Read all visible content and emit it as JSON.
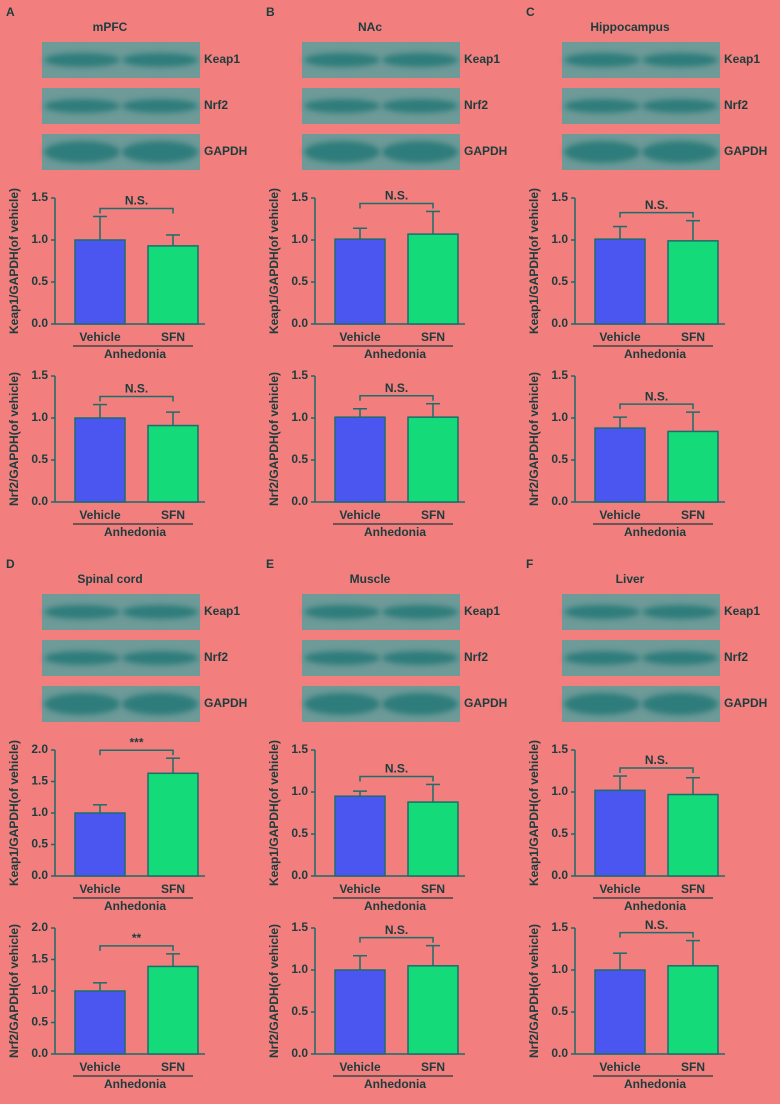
{
  "panels": [
    {
      "letter": "A",
      "title": "mPFC",
      "blot_labels": [
        "Keap1",
        "Nrf2",
        "GAPDH"
      ]
    },
    {
      "letter": "B",
      "title": "NAc",
      "blot_labels": [
        "Keap1",
        "Nrf2",
        "GAPDH"
      ]
    },
    {
      "letter": "C",
      "title": "Hippocampus",
      "blot_labels": [
        "Keap1",
        "Nrf2",
        "GAPDH"
      ]
    },
    {
      "letter": "D",
      "title": "Spinal cord",
      "blot_labels": [
        "Keap1",
        "Nrf2",
        "GAPDH"
      ]
    },
    {
      "letter": "E",
      "title": "Muscle",
      "blot_labels": [
        "Keap1",
        "Nrf2",
        "GAPDH"
      ]
    },
    {
      "letter": "F",
      "title": "Liver",
      "blot_labels": [
        "Keap1",
        "Nrf2",
        "GAPDH"
      ]
    }
  ],
  "chart_data": [
    {
      "type": "bar",
      "ylabel": "Keap1/GAPDH(of vehicle)",
      "categories": [
        "Vehicle",
        "SFN"
      ],
      "group_label": "Anhedonia",
      "values": [
        1.0,
        0.93
      ],
      "errors": [
        0.28,
        0.13
      ],
      "colors": [
        "#4b55f0",
        "#14da7a"
      ],
      "annotation": "N.S.",
      "ylim": [
        0,
        1.5
      ],
      "yticks": [
        {
          "value": 0,
          "label": "0.0"
        },
        0.5,
        {
          "value": 1,
          "label": "1.0"
        },
        1.5
      ]
    },
    {
      "type": "bar",
      "ylabel": "Nrf2/GAPDH(of vehicle)",
      "categories": [
        "Vehicle",
        "SFN"
      ],
      "group_label": "Anhedonia",
      "values": [
        1.0,
        0.91
      ],
      "errors": [
        0.16,
        0.16
      ],
      "colors": [
        "#4b55f0",
        "#14da7a"
      ],
      "annotation": "N.S.",
      "ylim": [
        0,
        1.5
      ],
      "yticks": [
        {
          "value": 0,
          "label": "0.0"
        },
        0.5,
        {
          "value": 1,
          "label": "1.0"
        },
        1.5
      ]
    },
    {
      "type": "bar",
      "ylabel": "Keap1/GAPDH(of vehicle)",
      "categories": [
        "Vehicle",
        "SFN"
      ],
      "group_label": "Anhedonia",
      "values": [
        1.01,
        1.07
      ],
      "errors": [
        0.13,
        0.27
      ],
      "colors": [
        "#4b55f0",
        "#14da7a"
      ],
      "annotation": "N.S.",
      "ylim": [
        0,
        1.5
      ],
      "yticks": [
        {
          "value": 0,
          "label": "0.0"
        },
        0.5,
        {
          "value": 1,
          "label": "1.0"
        },
        1.5
      ]
    },
    {
      "type": "bar",
      "ylabel": "Nrf2/GAPDH(of vehicle)",
      "categories": [
        "Vehicle",
        "SFN"
      ],
      "group_label": "Anhedonia",
      "values": [
        1.01,
        1.01
      ],
      "errors": [
        0.1,
        0.16
      ],
      "colors": [
        "#4b55f0",
        "#14da7a"
      ],
      "annotation": "N.S.",
      "ylim": [
        0,
        1.5
      ],
      "yticks": [
        {
          "value": 0,
          "label": "0.0"
        },
        0.5,
        {
          "value": 1,
          "label": "1.0"
        },
        1.5
      ]
    },
    {
      "type": "bar",
      "ylabel": "Keap1/GAPDH(of vehicle)",
      "categories": [
        "Vehicle",
        "SFN"
      ],
      "group_label": "Anhedonia",
      "values": [
        1.01,
        0.99
      ],
      "errors": [
        0.15,
        0.24
      ],
      "colors": [
        "#4b55f0",
        "#14da7a"
      ],
      "annotation": "N.S.",
      "ylim": [
        0,
        1.5
      ],
      "yticks": [
        {
          "value": 0,
          "label": "0.0"
        },
        0.5,
        {
          "value": 1,
          "label": "1.0"
        },
        1.5
      ]
    },
    {
      "type": "bar",
      "ylabel": "Nrf2/GAPDH(of vehicle)",
      "categories": [
        "Vehicle",
        "SFN"
      ],
      "group_label": "Anhedonia",
      "values": [
        0.88,
        0.84
      ],
      "errors": [
        0.13,
        0.23
      ],
      "colors": [
        "#4b55f0",
        "#14da7a"
      ],
      "annotation": "N.S.",
      "ylim": [
        0,
        1.5
      ],
      "yticks": [
        {
          "value": 0,
          "label": "0.0"
        },
        0.5,
        {
          "value": 1,
          "label": "1.0"
        },
        1.5
      ]
    },
    {
      "type": "bar",
      "ylabel": "Keap1/GAPDH(of vehicle)",
      "categories": [
        "Vehicle",
        "SFN"
      ],
      "group_label": "Anhedonia",
      "values": [
        1.0,
        1.63
      ],
      "errors": [
        0.13,
        0.24
      ],
      "colors": [
        "#4b55f0",
        "#14da7a"
      ],
      "annotation": "***",
      "ylim": [
        0,
        2
      ],
      "yticks": [
        {
          "value": 0,
          "label": "0.0"
        },
        0.5,
        {
          "value": 1,
          "label": "1.0"
        },
        1.5,
        {
          "value": 2,
          "label": "2.0"
        }
      ]
    },
    {
      "type": "bar",
      "ylabel": "Nrf2/GAPDH(of vehicle)",
      "categories": [
        "Vehicle",
        "SFN"
      ],
      "group_label": "Anhedonia",
      "values": [
        1.0,
        1.39
      ],
      "errors": [
        0.13,
        0.2
      ],
      "colors": [
        "#4b55f0",
        "#14da7a"
      ],
      "annotation": "**",
      "ylim": [
        0,
        2
      ],
      "yticks": [
        {
          "value": 0,
          "label": "0.0"
        },
        0.5,
        {
          "value": 1,
          "label": "1.0"
        },
        1.5,
        {
          "value": 2,
          "label": "2.0"
        }
      ]
    },
    {
      "type": "bar",
      "ylabel": "Keap1/GAPDH(of vehicle)",
      "categories": [
        "Vehicle",
        "SFN"
      ],
      "group_label": "Anhedonia",
      "values": [
        0.95,
        0.88
      ],
      "errors": [
        0.06,
        0.21
      ],
      "colors": [
        "#4b55f0",
        "#14da7a"
      ],
      "annotation": "N.S.",
      "ylim": [
        0,
        1.5
      ],
      "yticks": [
        {
          "value": 0,
          "label": "0.0"
        },
        0.5,
        {
          "value": 1,
          "label": "1.0"
        },
        1.5
      ]
    },
    {
      "type": "bar",
      "ylabel": "Nrf2/GAPDH(of vehicle)",
      "categories": [
        "Vehicle",
        "SFN"
      ],
      "group_label": "Anhedonia",
      "values": [
        1.0,
        1.05
      ],
      "errors": [
        0.17,
        0.24
      ],
      "colors": [
        "#4b55f0",
        "#14da7a"
      ],
      "annotation": "N.S.",
      "ylim": [
        0,
        1.5
      ],
      "yticks": [
        {
          "value": 0,
          "label": "0.0"
        },
        0.5,
        {
          "value": 1,
          "label": "1.0"
        },
        1.5
      ]
    },
    {
      "type": "bar",
      "ylabel": "Keap1/GAPDH(of vehicle)",
      "categories": [
        "Vehicle",
        "SFN"
      ],
      "group_label": "Anhedonia",
      "values": [
        1.02,
        0.97
      ],
      "errors": [
        0.17,
        0.2
      ],
      "colors": [
        "#4b55f0",
        "#14da7a"
      ],
      "annotation": "N.S.",
      "ylim": [
        0,
        1.5
      ],
      "yticks": [
        {
          "value": 0,
          "label": "0.0"
        },
        0.5,
        {
          "value": 1,
          "label": "1.0"
        },
        1.5
      ]
    },
    {
      "type": "bar",
      "ylabel": "Nrf2/GAPDH(of vehicle)",
      "categories": [
        "Vehicle",
        "SFN"
      ],
      "group_label": "Anhedonia",
      "values": [
        1.0,
        1.05
      ],
      "errors": [
        0.2,
        0.3
      ],
      "colors": [
        "#4b55f0",
        "#14da7a"
      ],
      "annotation": "N.S.",
      "ylim": [
        0,
        1.5
      ],
      "yticks": [
        {
          "value": 0,
          "label": "0.0"
        },
        0.5,
        {
          "value": 1,
          "label": "1.0"
        },
        1.5
      ]
    }
  ]
}
